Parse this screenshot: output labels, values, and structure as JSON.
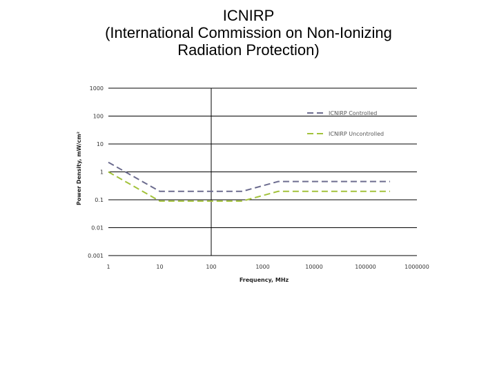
{
  "slide": {
    "title_lines": [
      "ICNIRP",
      "(International Commission on Non-Ionizing",
      "Radiation Protection)"
    ]
  },
  "chart_data": {
    "type": "line",
    "title": "",
    "xlabel": "Frequency, MHz",
    "ylabel": "Power Density, mW/cm²",
    "x_scale": "log",
    "y_scale": "log",
    "xlim": [
      1,
      1000000
    ],
    "ylim": [
      0.001,
      1000
    ],
    "x_ticks": [
      1,
      10,
      100,
      1000,
      10000,
      100000,
      1000000
    ],
    "x_tick_labels": [
      "1",
      "10",
      "100",
      "1000",
      "10000",
      "100000",
      "1000000"
    ],
    "y_ticks": [
      0.001,
      0.01,
      0.1,
      1,
      10,
      100,
      1000
    ],
    "y_tick_labels": [
      "0.001",
      "0.01",
      "0.1",
      "1",
      "10",
      "100",
      "1000"
    ],
    "grid": "horizontal",
    "legend_position": "top-right",
    "series": [
      {
        "name": "ICNIRP Controlled",
        "color": "#6b6b8e",
        "dash": "dashed",
        "x": [
          1,
          10,
          400,
          2000,
          300000
        ],
        "y": [
          2.2,
          0.2,
          0.2,
          0.45,
          0.45
        ]
      },
      {
        "name": "ICNIRP Uncontrolled",
        "color": "#a2c23a",
        "dash": "dashed",
        "x": [
          1,
          10,
          400,
          2000,
          300000
        ],
        "y": [
          1.0,
          0.09,
          0.09,
          0.2,
          0.2
        ]
      }
    ]
  }
}
